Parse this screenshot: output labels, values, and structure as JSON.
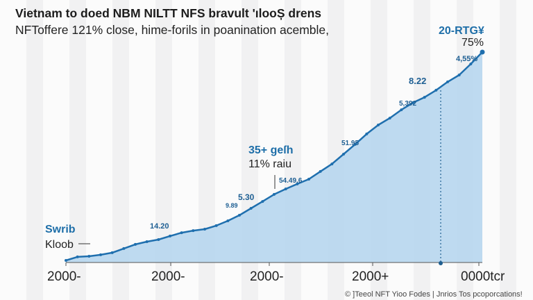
{
  "header": {
    "title": "Vietnam to doed NBM NILTT NFS bravult 'ılooȘ drens",
    "subtitle": "NFToffere 121% close, hime-forils in poanination acemble,"
  },
  "footer": "© ]Teeol NFT Yioo Fodes | Jnrios Tos pcoporcations!",
  "colors": {
    "line": "#1f6fae",
    "fill": "#b7d6ee",
    "text_accent": "#1d6ea8"
  },
  "chart_data": {
    "type": "area",
    "title": "",
    "xlabel": "",
    "ylabel": "",
    "x_tick_labels": [
      "2000-",
      "2000-",
      "2000-",
      "2000+",
      "0000tcr"
    ],
    "values": [
      1,
      2.7,
      3,
      3.7,
      4.7,
      6.7,
      8.7,
      10,
      11,
      12.7,
      14.3,
      15.3,
      16,
      17.7,
      20,
      22.7,
      26,
      29.3,
      32.7,
      35.3,
      37.7,
      40,
      43.7,
      47.3,
      52,
      56.7,
      61.7,
      66,
      69.3,
      73.3,
      76.7,
      79.3,
      82.7,
      86.7,
      90,
      95.3,
      101
    ],
    "grid": false,
    "annotations": {
      "left_title": "Swrib",
      "left_sub": "Kloob",
      "mid_title": "35+ geſh",
      "mid_sub": "11% raiu",
      "right_title": "20-RTG¥",
      "right_sub": "75%",
      "point_labels": [
        "14.20",
        "9.89",
        "5.30",
        "54.49.6",
        "51.95",
        "5,392",
        "8.22",
        "4,55%"
      ]
    }
  }
}
